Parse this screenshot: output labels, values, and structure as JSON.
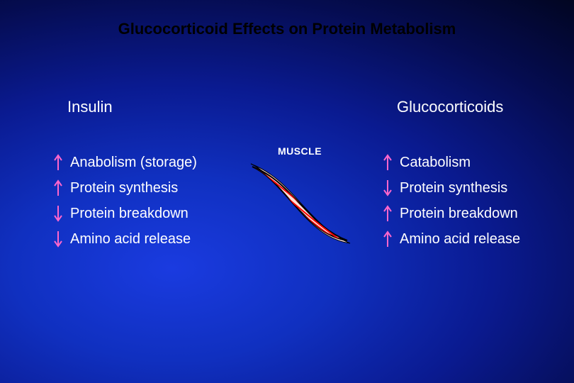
{
  "title": "Glucocorticoid Effects on Protein Metabolism",
  "title_fontsize": 22,
  "title_color": "#000000",
  "text_color": "#ffffff",
  "item_fontsize": 20,
  "header_fontsize": 22,
  "arrow_color": "#ff66cc",
  "arrow_stroke_width": 2,
  "background_gradient_colors": [
    "#1a3be0",
    "#1030c0",
    "#0a1a90",
    "#050c50",
    "#010418",
    "#000000"
  ],
  "left": {
    "header": "Insulin",
    "items": [
      {
        "dir": "up",
        "label": "Anabolism (storage)"
      },
      {
        "dir": "up",
        "label": "Protein synthesis"
      },
      {
        "dir": "down",
        "label": "Protein breakdown"
      },
      {
        "dir": "down",
        "label": "Amino acid release"
      }
    ]
  },
  "right": {
    "header": "Glucocorticoids",
    "items": [
      {
        "dir": "up",
        "label": "Catabolism"
      },
      {
        "dir": "down",
        "label": "Protein synthesis"
      },
      {
        "dir": "up",
        "label": "Protein breakdown"
      },
      {
        "dir": "up",
        "label": "Amino acid release"
      }
    ]
  },
  "center": {
    "label": "MUSCLE",
    "shape_fill": "#ffe0d8",
    "shape_stroke": "#000000",
    "striation_color": "#ff0000",
    "highlight_color": "#ffffff"
  }
}
